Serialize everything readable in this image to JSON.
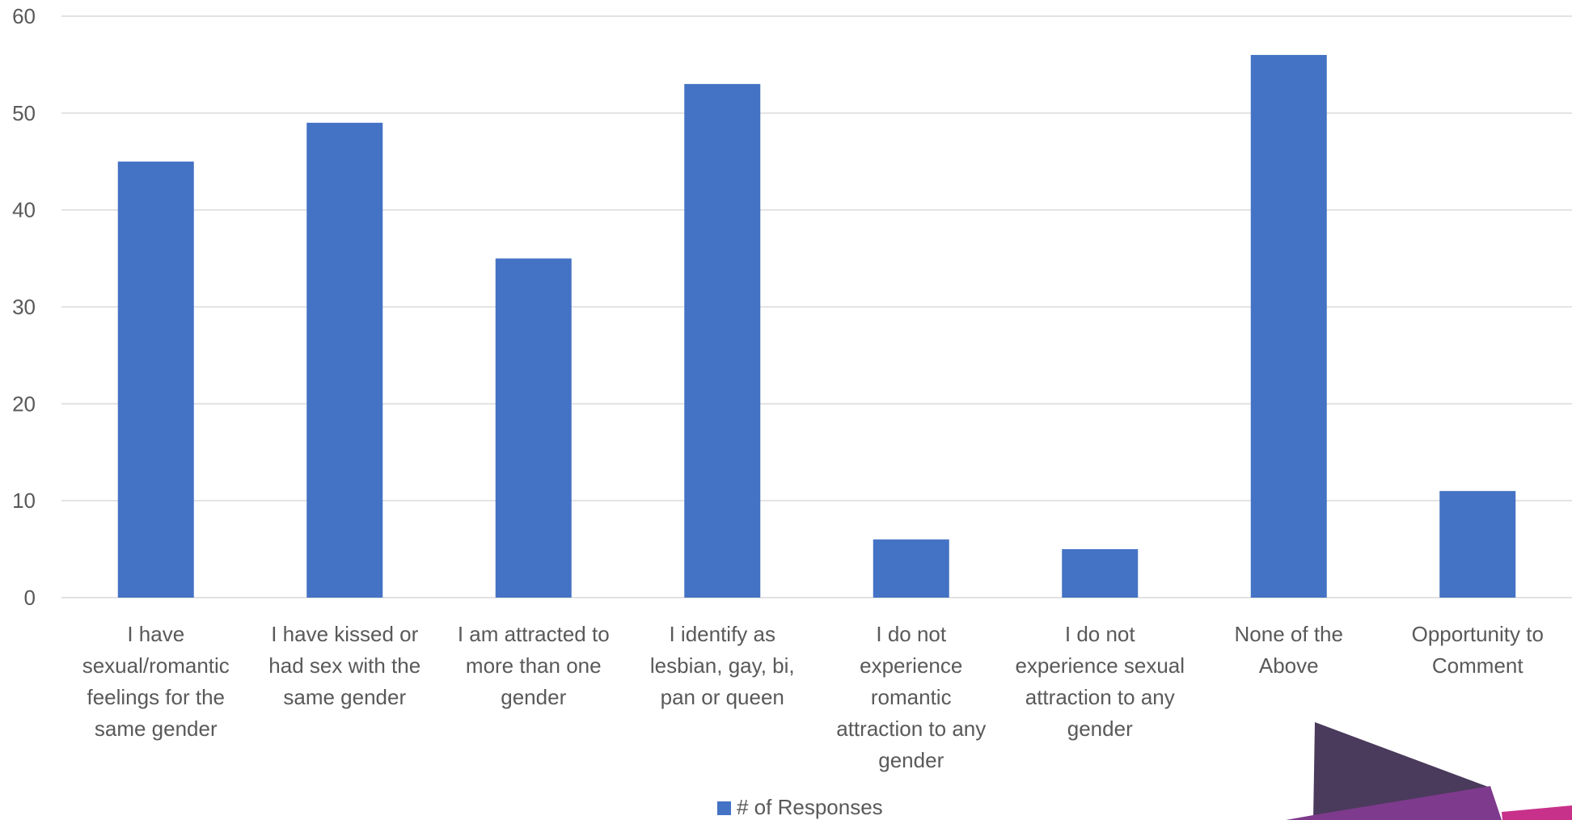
{
  "chart_data": {
    "type": "bar",
    "categories": [
      [
        "I have",
        "sexual/romantic",
        "feelings for the",
        "same gender"
      ],
      [
        "I have kissed or",
        "had sex with the",
        "same gender"
      ],
      [
        "I am attracted to",
        "more than one",
        "gender"
      ],
      [
        "I identify as",
        "lesbian, gay, bi,",
        "pan or queen"
      ],
      [
        "I do not",
        "experience",
        "romantic",
        "attraction to any",
        "gender"
      ],
      [
        "I do not",
        "experience sexual",
        "attraction to any",
        "gender"
      ],
      [
        "None of the",
        "Above"
      ],
      [
        "Opportunity to",
        "Comment"
      ]
    ],
    "series": [
      {
        "name": "# of Responses",
        "values": [
          45,
          49,
          35,
          53,
          6,
          5,
          56,
          11
        ]
      }
    ],
    "ylim": [
      0,
      60
    ],
    "yticks": [
      0,
      10,
      20,
      30,
      40,
      50,
      60
    ],
    "grid": true,
    "legend_position": "bottom"
  },
  "colors": {
    "bar": "#4472C4",
    "grid": "#D9D9D9",
    "decor_dark": "#4A3A5C",
    "decor_purple": "#7E3A8C",
    "decor_pink": "#C8318A"
  }
}
